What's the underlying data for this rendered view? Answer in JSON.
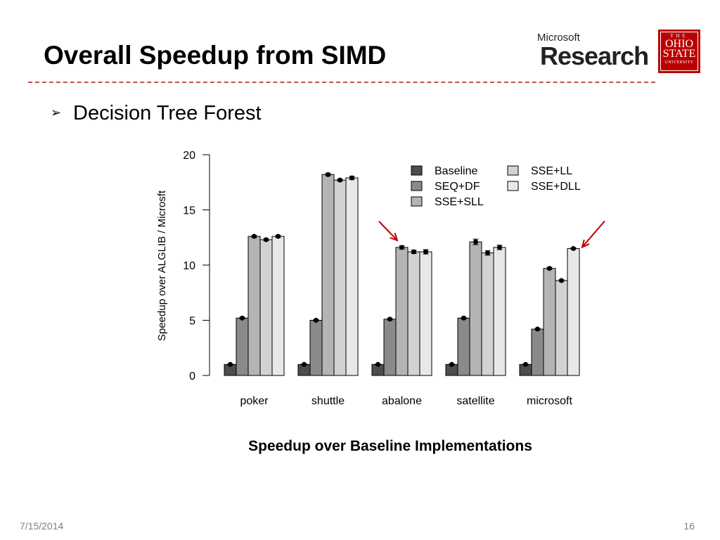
{
  "slide": {
    "title": "Overall Speedup from SIMD",
    "bullet": "Decision Tree Forest",
    "bullet_marker": "➢",
    "caption": "Speedup over Baseline Implementations",
    "date": "7/15/2014",
    "page_number": "16",
    "divider_color": "#c0504d"
  },
  "logos": {
    "microsoft_research": {
      "brand": "Microsoft",
      "division": "Research"
    },
    "ohio_state": {
      "top": "THE",
      "name": "OHIO\nSTATE",
      "sub": "UNIVERSITY",
      "color": "#bb0000"
    }
  },
  "chart_data": {
    "type": "bar",
    "ylabel": "Speedup over ALGLIB / Microsft",
    "xlabel": "",
    "ylim": [
      0,
      20
    ],
    "yticks": [
      0,
      5,
      10,
      15,
      20
    ],
    "grid": false,
    "legend_position": "top-right",
    "categories": [
      "poker",
      "shuttle",
      "abalone",
      "satellite",
      "microsoft"
    ],
    "series": [
      {
        "name": "Baseline",
        "color": "#4d4d4d",
        "values": [
          1.0,
          1.0,
          1.0,
          1.0,
          1.0
        ],
        "errors": [
          0.05,
          0.05,
          0.05,
          0.05,
          0.05
        ]
      },
      {
        "name": "SEQ+DF",
        "color": "#8a8a8a",
        "values": [
          5.2,
          5.0,
          5.1,
          5.2,
          4.2
        ],
        "errors": [
          0.08,
          0.08,
          0.08,
          0.08,
          0.08
        ]
      },
      {
        "name": "SSE+SLL",
        "color": "#b4b4b4",
        "values": [
          12.6,
          18.2,
          11.6,
          12.1,
          9.7
        ],
        "errors": [
          0.1,
          0.1,
          0.15,
          0.25,
          0.1
        ]
      },
      {
        "name": "SSE+LL",
        "color": "#d2d2d2",
        "values": [
          12.3,
          17.7,
          11.2,
          11.1,
          8.6
        ],
        "errors": [
          0.1,
          0.1,
          0.15,
          0.2,
          0.08
        ]
      },
      {
        "name": "SSE+DLL",
        "color": "#e8e8e8",
        "values": [
          12.6,
          17.9,
          11.2,
          11.6,
          11.5
        ],
        "errors": [
          0.1,
          0.15,
          0.2,
          0.2,
          0.08
        ]
      }
    ],
    "annotations": [
      {
        "type": "arrow",
        "color": "#c00000",
        "target_category": "abalone",
        "target_series": "SSE+SLL",
        "side": "left"
      },
      {
        "type": "arrow",
        "color": "#c00000",
        "target_category": "microsoft",
        "target_series": "SSE+DLL",
        "side": "right"
      }
    ]
  }
}
